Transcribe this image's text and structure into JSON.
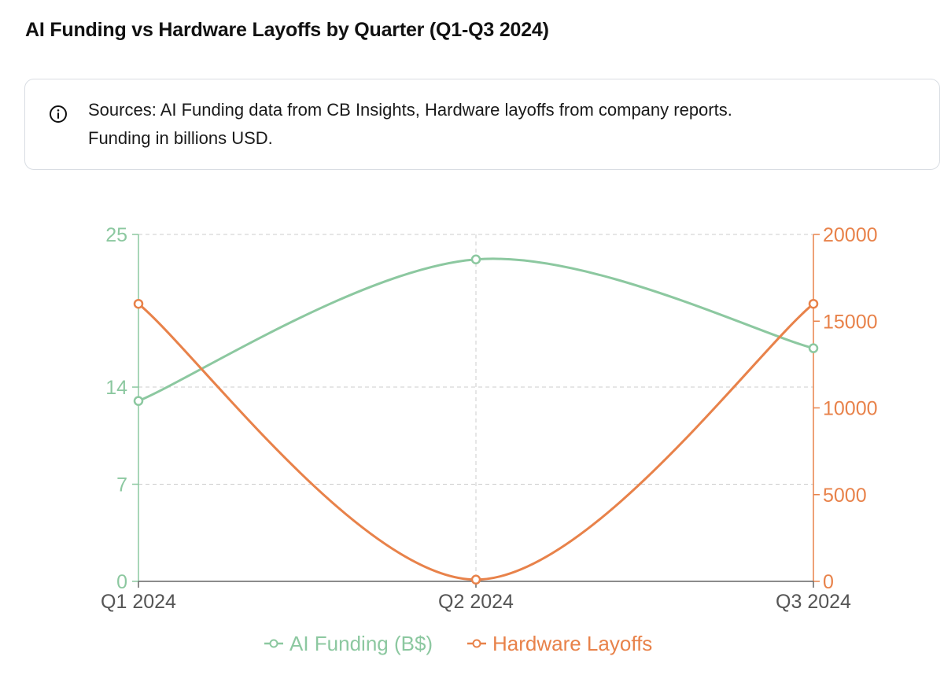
{
  "title": "AI Funding vs Hardware Layoffs by Quarter (Q1-Q3 2024)",
  "note": {
    "icon": "info-circle-icon",
    "text_line1": "Sources: AI Funding data from CB Insights, Hardware layoffs from company reports.",
    "text_line2": "Funding in billions USD."
  },
  "colors": {
    "funding": "#8cc8a0",
    "layoffs": "#e8824a",
    "grid": "#cccccc",
    "axis": "#666666"
  },
  "chart_data": {
    "type": "line",
    "categories": [
      "Q1 2024",
      "Q2 2024",
      "Q3 2024"
    ],
    "series": [
      {
        "name": "AI Funding (B$)",
        "axis": "left",
        "values": [
          13,
          23.2,
          16.8
        ],
        "color": "#8cc8a0"
      },
      {
        "name": "Hardware Layoffs",
        "axis": "right",
        "values": [
          16000,
          100,
          16000
        ],
        "color": "#e8824a"
      }
    ],
    "left_axis": {
      "ylim": [
        0,
        25
      ],
      "ticks": [
        0,
        7,
        14,
        25
      ]
    },
    "right_axis": {
      "ylim": [
        0,
        20000
      ],
      "ticks": [
        0,
        5000,
        10000,
        15000,
        20000
      ]
    },
    "curve": "smooth",
    "grid": true,
    "legend_position": "bottom"
  }
}
